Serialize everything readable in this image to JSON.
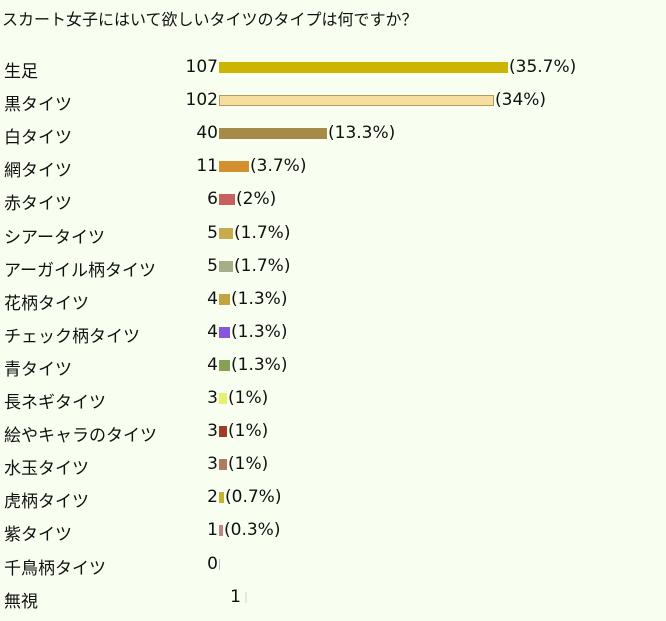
{
  "chart_data": {
    "type": "bar",
    "orientation": "horizontal",
    "title": "スカート女子にはいて欲しいタイツのタイプは何ですか？",
    "categories": [
      "生足",
      "黒タイツ",
      "白タイツ",
      "網タイツ",
      "赤タイツ",
      "シアータイツ",
      "アーガイル柄タイツ",
      "花柄タイツ",
      "チェック柄タイツ",
      "青タイツ",
      "長ネギタイツ",
      "絵やキャラのタイツ",
      "水玉タイツ",
      "虎柄タイツ",
      "紫タイツ",
      "千鳥柄タイツ",
      "無視"
    ],
    "values": [
      107,
      102,
      40,
      11,
      6,
      5,
      5,
      4,
      4,
      4,
      3,
      3,
      3,
      2,
      1,
      0,
      1
    ],
    "percent_labels": [
      "(35.7%)",
      "(34%)",
      "(13.3%)",
      "(3.7%)",
      "(2%)",
      "(1.7%)",
      "(1.7%)",
      "(1.3%)",
      "(1.3%)",
      "(1.3%)",
      "(1%)",
      "(1%)",
      "(1%)",
      "(0.7%)",
      "(0.3%)",
      "",
      ""
    ],
    "colors": [
      "#ccb400",
      "#f6dea0",
      "#a58b47",
      "#d4902e",
      "#c96060",
      "#c8ab4d",
      "#a7ad86",
      "#c4a440",
      "#8855dd",
      "#86a055",
      "#e6f070",
      "#a23a28",
      "#b07a64",
      "#c8b030",
      "#c48484",
      "#bbbbbb",
      ""
    ],
    "xlim": [
      0,
      107
    ]
  }
}
